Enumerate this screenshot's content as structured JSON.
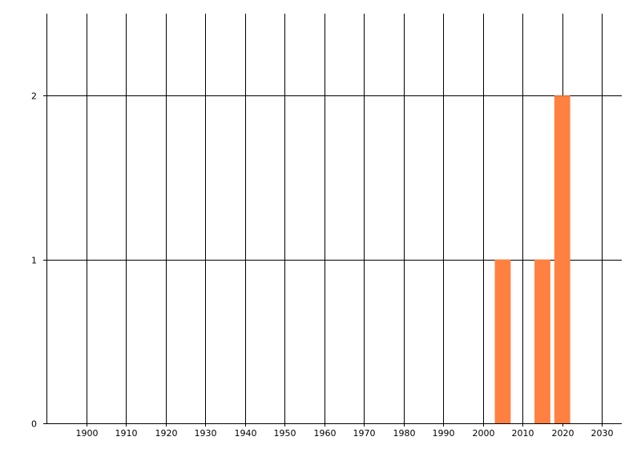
{
  "chart_data": {
    "type": "bar",
    "title": "",
    "xlabel": "",
    "ylabel": "",
    "xlim": [
      1890,
      2035
    ],
    "ylim": [
      0,
      2.5
    ],
    "x_ticks": [
      1900,
      1910,
      1920,
      1930,
      1940,
      1950,
      1960,
      1970,
      1980,
      1990,
      2000,
      2010,
      2020,
      2030
    ],
    "y_ticks": [
      0,
      1,
      2
    ],
    "bar_width_years": 4,
    "grid": true,
    "bars": [
      {
        "x": 2005,
        "value": 1
      },
      {
        "x": 2015,
        "value": 1
      },
      {
        "x": 2020,
        "value": 2
      }
    ],
    "bar_color": "#FF8040"
  }
}
